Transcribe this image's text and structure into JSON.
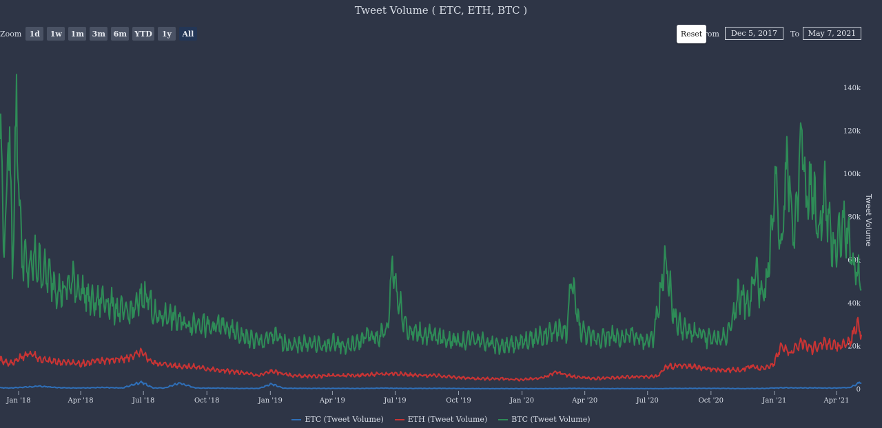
{
  "title": "Tweet Volume ( ETC, ETH, BTC )",
  "zoom": {
    "label": "Zoom",
    "buttons": [
      "1d",
      "1w",
      "1m",
      "3m",
      "6m",
      "YTD",
      "1y",
      "All"
    ],
    "active": "All"
  },
  "range": {
    "reset_label": "Reset",
    "from_label": "From",
    "from_value": "Dec 5, 2017",
    "to_label": "To",
    "to_value": "May 7, 2021"
  },
  "colors": {
    "ETC": "#2f6fb8",
    "ETH": "#c93434",
    "BTC": "#2e8c57"
  },
  "chart_data": {
    "type": "line",
    "title": "Tweet Volume ( ETC, ETH, BTC )",
    "xlabel": "",
    "ylabel": "Tweet Volume",
    "x_range": [
      "2017-12-05",
      "2021-05-07"
    ],
    "ylim": [
      0,
      140000
    ],
    "y_ticks": [
      0,
      20000,
      40000,
      60000,
      80000,
      100000,
      120000,
      140000
    ],
    "y_tick_labels": [
      "0",
      "20k",
      "40k",
      "60k",
      "80k",
      "100k",
      "120k",
      "140k"
    ],
    "x_tick_labels": [
      "Jan '18",
      "Apr '18",
      "Jul '18",
      "Oct '18",
      "Jan '19",
      "Apr '19",
      "Jul '19",
      "Oct '19",
      "Jan '20",
      "Apr '20",
      "Jul '20",
      "Oct '20",
      "Jan '21",
      "Apr '21"
    ],
    "x_tick_dates": [
      "2018-01-01",
      "2018-04-01",
      "2018-07-01",
      "2018-10-01",
      "2019-01-01",
      "2019-04-01",
      "2019-07-01",
      "2019-10-01",
      "2020-01-01",
      "2020-04-01",
      "2020-07-01",
      "2020-10-01",
      "2021-01-01",
      "2021-04-01"
    ],
    "legend_position": "bottom",
    "grid": false,
    "series": [
      {
        "name": "ETC (Tweet Volume)",
        "x": [
          "2017-12-05",
          "2017-12-20",
          "2018-01-05",
          "2018-02-01",
          "2018-03-01",
          "2018-04-01",
          "2018-05-01",
          "2018-06-01",
          "2018-06-28",
          "2018-07-15",
          "2018-08-01",
          "2018-08-22",
          "2018-09-15",
          "2018-10-15",
          "2018-11-15",
          "2018-12-15",
          "2019-01-03",
          "2019-01-20",
          "2019-02-15",
          "2019-03-15",
          "2019-04-15",
          "2019-05-15",
          "2019-06-15",
          "2019-07-15",
          "2019-08-15",
          "2019-09-15",
          "2019-10-15",
          "2019-11-15",
          "2019-12-15",
          "2020-01-15",
          "2020-02-15",
          "2020-03-15",
          "2020-04-15",
          "2020-05-15",
          "2020-06-15",
          "2020-07-15",
          "2020-08-15",
          "2020-09-15",
          "2020-10-15",
          "2020-11-15",
          "2020-12-15",
          "2021-01-15",
          "2021-02-15",
          "2021-03-15",
          "2021-04-01",
          "2021-04-20",
          "2021-05-07"
        ],
        "values": [
          800,
          700,
          1000,
          1500,
          800,
          700,
          900,
          700,
          3500,
          700,
          700,
          3000,
          700,
          600,
          500,
          500,
          2500,
          600,
          500,
          500,
          500,
          500,
          600,
          500,
          500,
          500,
          400,
          400,
          400,
          400,
          400,
          500,
          400,
          400,
          400,
          400,
          500,
          500,
          500,
          400,
          500,
          800,
          700,
          700,
          700,
          900,
          3500
        ]
      },
      {
        "name": "ETH (Tweet Volume)",
        "x": [
          "2017-12-05",
          "2017-12-20",
          "2018-01-05",
          "2018-01-20",
          "2018-02-01",
          "2018-02-20",
          "2018-03-15",
          "2018-04-01",
          "2018-05-01",
          "2018-06-01",
          "2018-06-28",
          "2018-07-15",
          "2018-08-15",
          "2018-09-15",
          "2018-10-15",
          "2018-11-15",
          "2018-12-15",
          "2019-01-03",
          "2019-02-01",
          "2019-03-01",
          "2019-04-01",
          "2019-05-01",
          "2019-06-01",
          "2019-07-01",
          "2019-08-01",
          "2019-09-01",
          "2019-10-01",
          "2019-11-01",
          "2019-12-01",
          "2020-01-01",
          "2020-02-01",
          "2020-02-20",
          "2020-03-15",
          "2020-04-15",
          "2020-05-15",
          "2020-06-15",
          "2020-07-15",
          "2020-07-28",
          "2020-08-15",
          "2020-09-15",
          "2020-10-15",
          "2020-11-15",
          "2020-11-25",
          "2020-12-15",
          "2020-12-31",
          "2021-01-10",
          "2021-01-25",
          "2021-02-10",
          "2021-02-25",
          "2021-03-15",
          "2021-04-01",
          "2021-04-20",
          "2021-05-01",
          "2021-05-07"
        ],
        "values": [
          14000,
          12000,
          15000,
          17000,
          14000,
          13000,
          12500,
          12000,
          13500,
          14000,
          17000,
          12500,
          11000,
          10500,
          9000,
          8000,
          6500,
          8500,
          6500,
          6000,
          6500,
          6500,
          7000,
          7500,
          6500,
          6500,
          5500,
          5000,
          5000,
          4500,
          5500,
          8000,
          6000,
          5000,
          5500,
          6000,
          6000,
          10500,
          11000,
          10000,
          9000,
          9000,
          11000,
          9500,
          12000,
          20000,
          17000,
          22000,
          19000,
          22000,
          20000,
          22000,
          30000,
          27000
        ]
      },
      {
        "name": "BTC (Tweet Volume)",
        "x": [
          "2017-12-05",
          "2017-12-12",
          "2017-12-18",
          "2017-12-23",
          "2017-12-29",
          "2018-01-05",
          "2018-01-15",
          "2018-01-25",
          "2018-02-06",
          "2018-02-20",
          "2018-03-05",
          "2018-03-20",
          "2018-04-05",
          "2018-04-20",
          "2018-05-05",
          "2018-05-20",
          "2018-06-05",
          "2018-06-20",
          "2018-07-05",
          "2018-07-20",
          "2018-08-05",
          "2018-08-20",
          "2018-09-05",
          "2018-09-20",
          "2018-10-05",
          "2018-10-20",
          "2018-11-05",
          "2018-11-20",
          "2018-12-05",
          "2018-12-20",
          "2019-01-05",
          "2019-01-20",
          "2019-02-05",
          "2019-02-20",
          "2019-03-05",
          "2019-03-20",
          "2019-04-05",
          "2019-04-20",
          "2019-05-05",
          "2019-05-20",
          "2019-06-05",
          "2019-06-20",
          "2019-06-27",
          "2019-07-05",
          "2019-07-20",
          "2019-08-05",
          "2019-08-20",
          "2019-09-05",
          "2019-09-20",
          "2019-10-05",
          "2019-10-20",
          "2019-11-05",
          "2019-11-20",
          "2019-12-05",
          "2019-12-20",
          "2020-01-05",
          "2020-01-20",
          "2020-02-05",
          "2020-02-20",
          "2020-03-05",
          "2020-03-13",
          "2020-03-25",
          "2020-04-10",
          "2020-04-25",
          "2020-05-10",
          "2020-05-25",
          "2020-06-10",
          "2020-06-25",
          "2020-07-10",
          "2020-07-27",
          "2020-08-10",
          "2020-08-25",
          "2020-09-10",
          "2020-09-25",
          "2020-10-10",
          "2020-10-25",
          "2020-11-10",
          "2020-11-25",
          "2020-12-05",
          "2020-12-15",
          "2020-12-25",
          "2021-01-03",
          "2021-01-10",
          "2021-01-20",
          "2021-01-30",
          "2021-02-10",
          "2021-02-15",
          "2021-02-25",
          "2021-03-05",
          "2021-03-15",
          "2021-03-25",
          "2021-04-05",
          "2021-04-14",
          "2021-04-22",
          "2021-05-01",
          "2021-05-07"
        ],
        "values": [
          120000,
          65000,
          125000,
          60000,
          130000,
          65000,
          55000,
          60000,
          55000,
          50000,
          45000,
          50000,
          45000,
          40000,
          42000,
          38000,
          35000,
          38000,
          45000,
          33000,
          35000,
          32000,
          30000,
          32000,
          28000,
          30000,
          27000,
          25000,
          23000,
          22000,
          25000,
          22000,
          20000,
          22000,
          21000,
          20000,
          22000,
          20000,
          21000,
          25000,
          24000,
          28000,
          60000,
          42000,
          27000,
          26000,
          25000,
          24000,
          23000,
          22000,
          24000,
          23000,
          21000,
          20000,
          21000,
          22000,
          24000,
          25000,
          28000,
          26000,
          50000,
          28000,
          24000,
          24000,
          25000,
          24000,
          25000,
          22000,
          24000,
          60000,
          32000,
          27000,
          26000,
          24000,
          23000,
          25000,
          45000,
          38000,
          55000,
          40000,
          60000,
          100000,
          65000,
          110000,
          65000,
          120000,
          85000,
          95000,
          70000,
          90000,
          65000,
          70000,
          80000,
          60000,
          55000,
          50000
        ]
      }
    ]
  }
}
